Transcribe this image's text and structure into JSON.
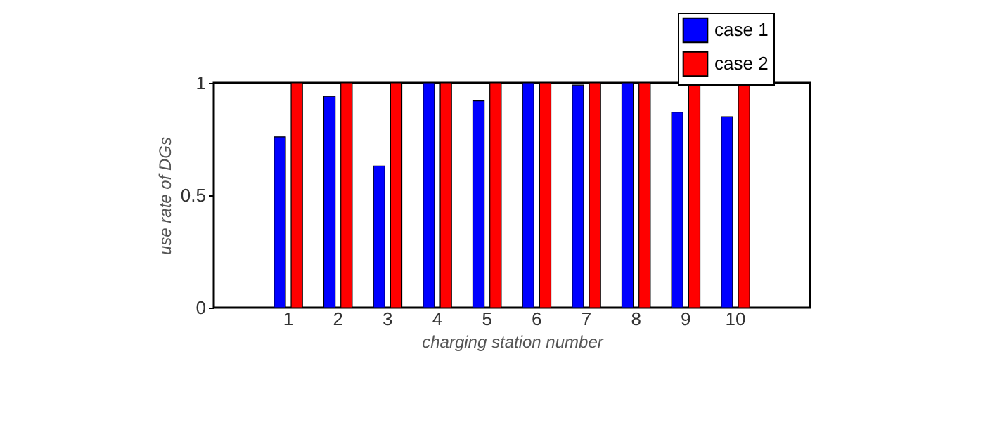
{
  "chart_data": {
    "type": "bar",
    "xlabel": "charging station number",
    "ylabel": "use rate of DGs",
    "categories": [
      "1",
      "2",
      "3",
      "4",
      "5",
      "6",
      "7",
      "8",
      "9",
      "10"
    ],
    "series": [
      {
        "name": "case 1",
        "color": "#0000ff",
        "values": [
          0.76,
          0.94,
          0.63,
          1,
          0.92,
          1,
          0.99,
          1,
          0.87,
          0.85
        ]
      },
      {
        "name": "case 2",
        "color": "#ff0000",
        "values": [
          1,
          1,
          1,
          1,
          1,
          1,
          1,
          1,
          1,
          1
        ]
      }
    ],
    "ylim": [
      0,
      1
    ],
    "yticks": [
      0,
      0.5,
      1
    ],
    "grid": false,
    "legend": "top right"
  }
}
